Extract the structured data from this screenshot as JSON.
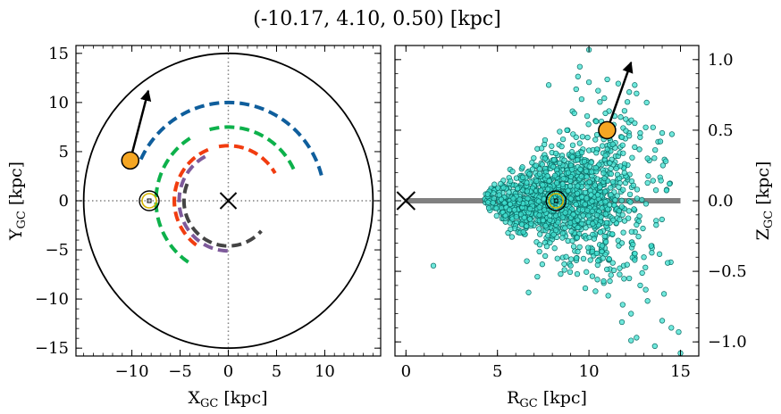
{
  "figure": {
    "title": "(-10.17, 4.10, 0.50) [kpc]"
  },
  "chart_data": [
    {
      "type": "scatter",
      "panel": "left",
      "xlabel": "X",
      "xlabel_sub": "GC",
      "xlabel_unit": " [kpc]",
      "ylabel": "Y",
      "ylabel_sub": "GC",
      "ylabel_unit": " [kpc]",
      "xlim": [
        -15.8,
        15.8
      ],
      "ylim": [
        -15.8,
        15.8
      ],
      "xticks": [
        -10,
        -5,
        0,
        5,
        10
      ],
      "xtick_labels": [
        "−10",
        "−5",
        "0",
        "5",
        "10"
      ],
      "yticks": [
        -15,
        -10,
        -5,
        0,
        5,
        10,
        15
      ],
      "ytick_labels": [
        "−15",
        "−10",
        "−5",
        "0",
        "5",
        "10",
        "15"
      ],
      "boundary_circle_radius": 15,
      "crosshair_lines": {
        "x": 0,
        "y": 0,
        "style": "dotted",
        "color": "#808080"
      },
      "galactic_center_marker": {
        "x": 0,
        "y": 0,
        "marker": "x"
      },
      "sun_marker": {
        "x": -8.2,
        "y": 0.0
      },
      "target": {
        "x": -10.17,
        "y": 4.1,
        "color": "#F5A623"
      },
      "velocity_arrow": {
        "from": [
          -10.17,
          4.1
        ],
        "to": [
          -8.3,
          11.2
        ]
      },
      "spiral_arms": [
        {
          "color": "#0F5E9C",
          "radius": 10.0,
          "theta_deg": [
            155,
            15
          ]
        },
        {
          "color": "#0DB14B",
          "radius": 7.5,
          "theta_deg": [
            122,
            238
          ]
        },
        {
          "color": "#0DB14B",
          "radius": 7.5,
          "theta_deg": [
            105,
            24
          ]
        },
        {
          "color": "#F5A623",
          "radius": 5.6,
          "theta_deg": [
            160,
            188
          ]
        },
        {
          "color": "#F13C10",
          "radius": 5.6,
          "theta_deg": [
            112,
            235
          ]
        },
        {
          "color": "#F13C10",
          "radius": 5.6,
          "theta_deg": [
            100,
            30
          ]
        },
        {
          "color": "#7E5A9B",
          "radius": 5.1,
          "theta_deg": [
            118,
            272
          ]
        },
        {
          "color": "#444444",
          "radius": 4.6,
          "theta_deg": [
            158,
            318
          ]
        }
      ]
    },
    {
      "type": "scatter",
      "panel": "right",
      "xlabel": "R",
      "xlabel_sub": "GC",
      "xlabel_unit": " [kpc]",
      "ylabel": "Z",
      "ylabel_sub": "GC",
      "ylabel_unit": " [kpc]",
      "xlim": [
        -0.6,
        16.0
      ],
      "ylim": [
        -1.1,
        1.1
      ],
      "xticks": [
        0,
        5,
        10,
        15
      ],
      "xtick_labels": [
        "0",
        "5",
        "10",
        "15"
      ],
      "yticks": [
        -1.0,
        -0.5,
        0.0,
        0.5,
        1.0
      ],
      "ytick_labels": [
        "−1.0",
        "−0.5",
        "0.0",
        "0.5",
        "1.0"
      ],
      "disk_plane": {
        "x": [
          0,
          15
        ],
        "y": 0,
        "color": "#808080"
      },
      "galactic_center_marker": {
        "x": 0,
        "y": 0,
        "marker": "x"
      },
      "sun_marker": {
        "x": 8.2,
        "y": 0.0
      },
      "target": {
        "x": 10.99,
        "y": 0.5,
        "color": "#F5A623"
      },
      "velocity_arrow": {
        "from": [
          10.99,
          0.5
        ],
        "to": [
          12.3,
          0.98
        ]
      },
      "points_style": {
        "color": "#40E0D0",
        "edge": "#0A6B64"
      },
      "points": [
        [
          10.0,
          1.07
        ],
        [
          9.5,
          0.95
        ],
        [
          9.4,
          0.88
        ],
        [
          11.0,
          0.86
        ],
        [
          10.0,
          0.84
        ],
        [
          12.5,
          0.82
        ],
        [
          11.6,
          0.83
        ],
        [
          12.2,
          0.77
        ],
        [
          12.6,
          0.76
        ],
        [
          7.8,
          0.82
        ],
        [
          9.3,
          0.79
        ],
        [
          10.5,
          0.78
        ],
        [
          9.6,
          0.72
        ],
        [
          10.6,
          0.7
        ],
        [
          12.1,
          0.7
        ],
        [
          9.2,
          0.62
        ],
        [
          9.9,
          0.6
        ],
        [
          10.9,
          0.62
        ],
        [
          11.4,
          0.6
        ],
        [
          12.5,
          0.55
        ],
        [
          13.1,
          0.52
        ],
        [
          13.5,
          0.52
        ],
        [
          14.0,
          0.48
        ],
        [
          12.8,
          0.48
        ],
        [
          12.2,
          0.46
        ],
        [
          11.8,
          0.45
        ],
        [
          8.8,
          0.5
        ],
        [
          9.3,
          0.45
        ],
        [
          8.4,
          0.49
        ],
        [
          7.6,
          0.43
        ],
        [
          11.3,
          0.4
        ],
        [
          12.5,
          0.38
        ],
        [
          13.9,
          0.42
        ],
        [
          10.4,
          0.34
        ],
        [
          10.9,
          0.32
        ],
        [
          13.2,
          0.3
        ],
        [
          14.2,
          0.28
        ],
        [
          9.1,
          0.31
        ],
        [
          7.6,
          0.3
        ],
        [
          8.1,
          0.29
        ],
        [
          14.4,
          0.12
        ],
        [
          1.5,
          -0.46
        ],
        [
          6.7,
          -0.65
        ],
        [
          9.8,
          -0.62
        ],
        [
          10.8,
          -0.57
        ],
        [
          12.2,
          -0.55
        ],
        [
          13.1,
          -0.63
        ],
        [
          12.8,
          -0.6
        ],
        [
          14.1,
          -0.66
        ],
        [
          13.2,
          -0.71
        ],
        [
          12.3,
          -0.8
        ],
        [
          14.0,
          -0.85
        ],
        [
          11.8,
          -0.86
        ],
        [
          14.5,
          -0.9
        ],
        [
          14.9,
          -0.93
        ],
        [
          12.6,
          -0.97
        ],
        [
          12.3,
          -0.99
        ],
        [
          13.6,
          -1.03
        ],
        [
          15.0,
          -1.08
        ],
        [
          12.5,
          -0.42
        ],
        [
          13.0,
          -0.4
        ],
        [
          11.3,
          -0.44
        ],
        [
          9.0,
          -0.46
        ],
        [
          13.4,
          -0.32
        ],
        [
          14.3,
          -0.44
        ],
        [
          10.7,
          -0.36
        ],
        [
          11.8,
          -0.3
        ],
        [
          12.4,
          -0.31
        ]
      ]
    }
  ]
}
